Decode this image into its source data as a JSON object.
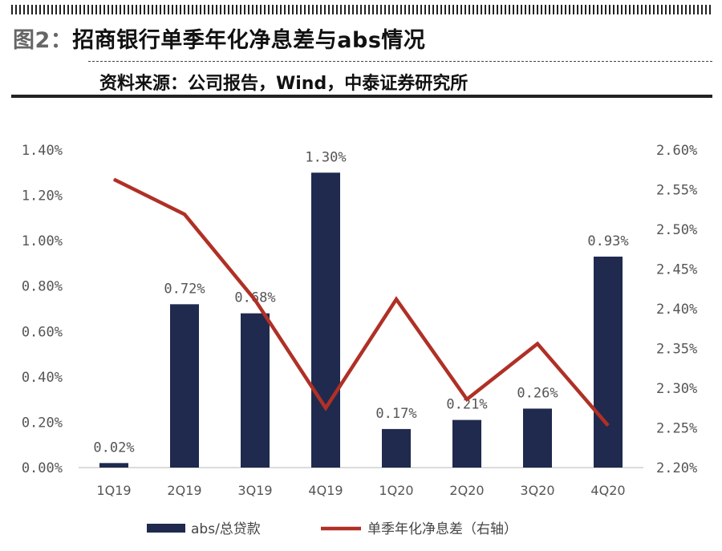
{
  "header": {
    "figure_label": "图2：",
    "title": "招商银行单季年化净息差与abs情况",
    "source": "资料来源：公司报告，Wind，中泰证券研究所"
  },
  "chart_data": {
    "type": "bar+line",
    "categories": [
      "1Q19",
      "2Q19",
      "3Q19",
      "4Q19",
      "1Q20",
      "2Q20",
      "3Q20",
      "4Q20"
    ],
    "series": [
      {
        "name": "abs/总贷款",
        "type": "bar",
        "axis": "left",
        "color": "#1f2a4e",
        "values": [
          0.02,
          0.72,
          0.68,
          1.3,
          0.17,
          0.21,
          0.26,
          0.93
        ],
        "labels": [
          "0.02%",
          "0.72%",
          "0.68%",
          "1.30%",
          "0.17%",
          "0.21%",
          "0.26%",
          "0.93%"
        ]
      },
      {
        "name": "单季年化净息差（右轴）",
        "type": "line",
        "axis": "right",
        "color": "#b03026",
        "values": [
          2.563,
          2.519,
          2.411,
          2.275,
          2.412,
          2.286,
          2.356,
          2.253
        ]
      }
    ],
    "left_axis": {
      "ylim": [
        0,
        1.4
      ],
      "ticks": [
        0,
        0.2,
        0.4,
        0.6,
        0.8,
        1.0,
        1.2,
        1.4
      ],
      "tick_labels": [
        "0.00%",
        "0.20%",
        "0.40%",
        "0.60%",
        "0.80%",
        "1.00%",
        "1.20%",
        "1.40%"
      ]
    },
    "right_axis": {
      "ylim": [
        2.2,
        2.6
      ],
      "ticks": [
        2.2,
        2.25,
        2.3,
        2.35,
        2.4,
        2.45,
        2.5,
        2.55,
        2.6
      ],
      "tick_labels": [
        "2.20%",
        "2.25%",
        "2.30%",
        "2.35%",
        "2.40%",
        "2.45%",
        "2.50%",
        "2.55%",
        "2.60%"
      ]
    },
    "grid": false,
    "legend_position": "bottom-center"
  }
}
